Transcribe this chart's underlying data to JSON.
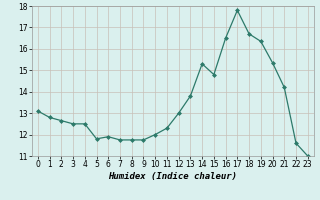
{
  "xlabel": "Humidex (Indice chaleur)",
  "x": [
    0,
    1,
    2,
    3,
    4,
    5,
    6,
    7,
    8,
    9,
    10,
    11,
    12,
    13,
    14,
    15,
    16,
    17,
    18,
    19,
    20,
    21,
    22,
    23
  ],
  "y": [
    13.1,
    12.8,
    12.65,
    12.5,
    12.5,
    11.8,
    11.9,
    11.75,
    11.75,
    11.75,
    12.0,
    12.3,
    13.0,
    13.8,
    15.3,
    14.8,
    16.5,
    17.8,
    16.7,
    16.35,
    15.35,
    14.2,
    11.6,
    11.0
  ],
  "ylim": [
    11,
    18
  ],
  "yticks": [
    11,
    12,
    13,
    14,
    15,
    16,
    17,
    18
  ],
  "xticks": [
    0,
    1,
    2,
    3,
    4,
    5,
    6,
    7,
    8,
    9,
    10,
    11,
    12,
    13,
    14,
    15,
    16,
    17,
    18,
    19,
    20,
    21,
    22,
    23
  ],
  "line_color": "#2d7a6a",
  "marker": "D",
  "marker_size": 2.0,
  "bg_color": "#daf0ee",
  "grid_color": "#c8c0b8",
  "fig_bg": "#daf0ee",
  "tick_fontsize": 5.5,
  "xlabel_fontsize": 6.5
}
